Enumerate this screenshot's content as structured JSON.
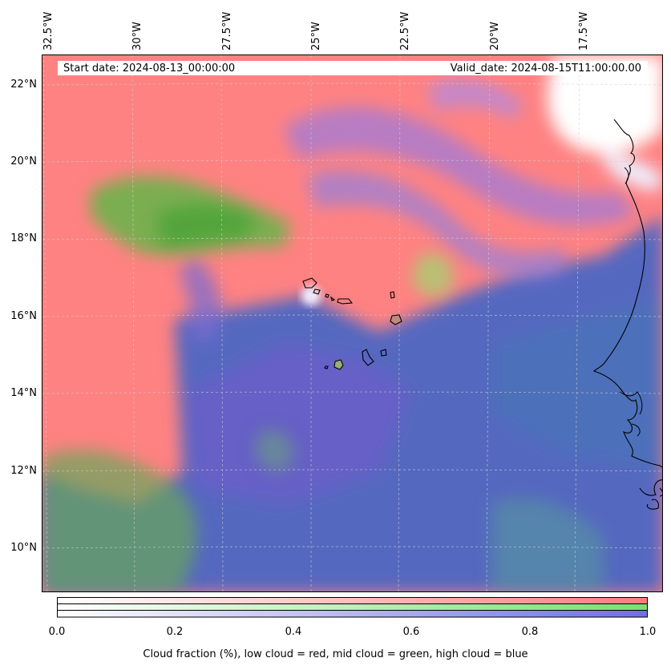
{
  "header": {
    "start_date": "Start date: 2024-08-13_00:00:00",
    "valid_date": "Valid_date: 2024-08-15T11:00:00.00"
  },
  "longitude_labels": [
    "32.5°W",
    "30°W",
    "27.5°W",
    "25°W",
    "22.5°W",
    "20°W",
    "17.5°W"
  ],
  "latitude_labels": [
    "22°N",
    "20°N",
    "18°N",
    "16°N",
    "14°N",
    "12°N",
    "10°N"
  ],
  "colorbar": {
    "ticks": [
      "0.0",
      "0.2",
      "0.4",
      "0.6",
      "0.8",
      "1.0"
    ],
    "caption": "Cloud fraction (%), low cloud = red, mid cloud = green, high cloud = blue",
    "low_color": "#ff7b7b",
    "mid_color": "#79e070",
    "high_color": "#6f6fe0"
  },
  "map": {
    "low_cloud_color": "#ff8080",
    "mid_cloud_color": "#6db24a",
    "high_cloud_color": "#5468c0",
    "clear_color": "#ffffff",
    "coastline_color": "#000000"
  }
}
